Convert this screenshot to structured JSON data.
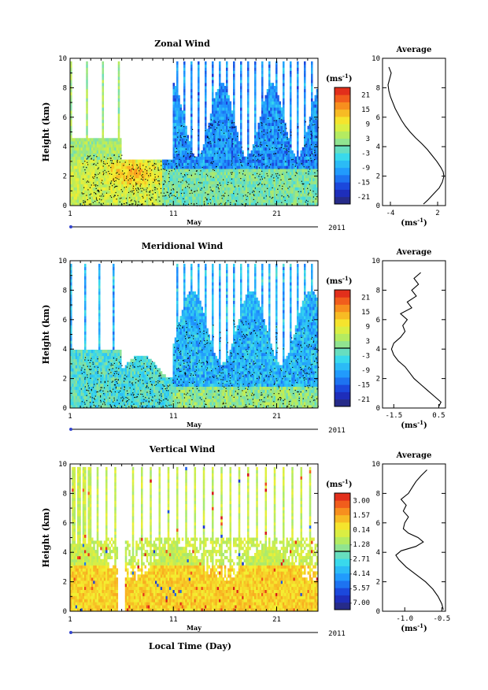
{
  "xlabel": "Local Time (Day)",
  "month_label": "May",
  "year_label": "2011",
  "unit_label": "(ms",
  "unit_exp": "-1",
  "unit_close": ")",
  "ylabel": "Height (km)",
  "avg_title": "Average",
  "chart_data": [
    {
      "type": "heatmap",
      "title": "Zonal Wind",
      "x_ticks": [
        "1",
        "11",
        "21"
      ],
      "xlim": [
        1,
        25
      ],
      "ylim": [
        0,
        10
      ],
      "y_ticks": [
        "0",
        "2",
        "4",
        "6",
        "8",
        "10"
      ],
      "colorbar_ticks": [
        "21",
        "15",
        "9",
        "3",
        "-3",
        "-9",
        "-15",
        "-21"
      ],
      "colorbar_range": [
        -24,
        24
      ],
      "avg_x_ticks": [
        "-4",
        "2"
      ],
      "avg_xlim": [
        -5,
        3
      ],
      "avg_profile": {
        "height": [
          0.1,
          0.4,
          0.8,
          1.2,
          1.6,
          2.0,
          2.3,
          2.6,
          3.0,
          3.4,
          3.8,
          4.2,
          4.6,
          5.0,
          5.4,
          5.8,
          6.2,
          6.6,
          7.0,
          7.4,
          7.8,
          8.2,
          8.6,
          9.0,
          9.4
        ],
        "value": [
          0.2,
          0.8,
          1.5,
          2.2,
          2.6,
          2.8,
          2.7,
          2.4,
          1.9,
          1.3,
          0.7,
          0.0,
          -0.8,
          -1.5,
          -2.1,
          -2.6,
          -3.0,
          -3.4,
          -3.7,
          -4.0,
          -4.2,
          -4.3,
          -4.1,
          -3.9,
          -4.2
        ]
      }
    },
    {
      "type": "heatmap",
      "title": "Meridional Wind",
      "x_ticks": [
        "1",
        "11",
        "21"
      ],
      "xlim": [
        1,
        25
      ],
      "ylim": [
        0,
        10
      ],
      "y_ticks": [
        "0",
        "2",
        "4",
        "6",
        "8",
        "10"
      ],
      "colorbar_ticks": [
        "21",
        "15",
        "9",
        "3",
        "-3",
        "-9",
        "-15",
        "-21"
      ],
      "colorbar_range": [
        -24,
        24
      ],
      "avg_x_ticks": [
        "-1.5",
        "0.5"
      ],
      "avg_xlim": [
        -2.0,
        0.8
      ],
      "avg_profile": {
        "height": [
          0.1,
          0.4,
          0.8,
          1.2,
          1.6,
          2.0,
          2.4,
          2.8,
          3.2,
          3.6,
          4.0,
          4.4,
          4.8,
          5.2,
          5.6,
          6.0,
          6.4,
          6.8,
          7.2,
          7.6,
          8.0,
          8.4,
          8.8,
          9.2
        ],
        "value": [
          0.5,
          0.6,
          0.3,
          0.0,
          -0.3,
          -0.6,
          -0.8,
          -1.0,
          -1.3,
          -1.5,
          -1.6,
          -1.5,
          -1.2,
          -1.0,
          -1.1,
          -0.9,
          -1.2,
          -0.7,
          -0.9,
          -0.5,
          -0.7,
          -0.4,
          -0.6,
          -0.3
        ]
      }
    },
    {
      "type": "heatmap",
      "title": "Vertical Wind",
      "x_ticks": [
        "1",
        "11",
        "21"
      ],
      "xlim": [
        1,
        25
      ],
      "ylim": [
        0,
        10
      ],
      "y_ticks": [
        "0",
        "2",
        "4",
        "6",
        "8",
        "10"
      ],
      "colorbar_ticks": [
        "3.00",
        "1.57",
        "0.14",
        "-1.28",
        "-2.71",
        "-4.14",
        "-5.57",
        "-7.00"
      ],
      "colorbar_range": [
        -8,
        3.5
      ],
      "avg_x_ticks": [
        "-1.0",
        "-0.5"
      ],
      "avg_xlim": [
        -1.3,
        -0.45
      ],
      "avg_profile": {
        "height": [
          0.1,
          0.5,
          1.0,
          1.5,
          2.0,
          2.5,
          3.0,
          3.5,
          3.8,
          4.1,
          4.4,
          4.7,
          5.0,
          5.3,
          5.6,
          6.0,
          6.4,
          6.8,
          7.2,
          7.6,
          8.0,
          8.4,
          8.8,
          9.2,
          9.6
        ],
        "value": [
          -0.48,
          -0.5,
          -0.55,
          -0.62,
          -0.72,
          -0.85,
          -0.98,
          -1.08,
          -1.12,
          -1.05,
          -0.85,
          -0.75,
          -0.82,
          -0.95,
          -1.02,
          -1.0,
          -0.95,
          -1.02,
          -0.98,
          -1.05,
          -0.95,
          -0.9,
          -0.85,
          -0.78,
          -0.7
        ]
      }
    }
  ]
}
